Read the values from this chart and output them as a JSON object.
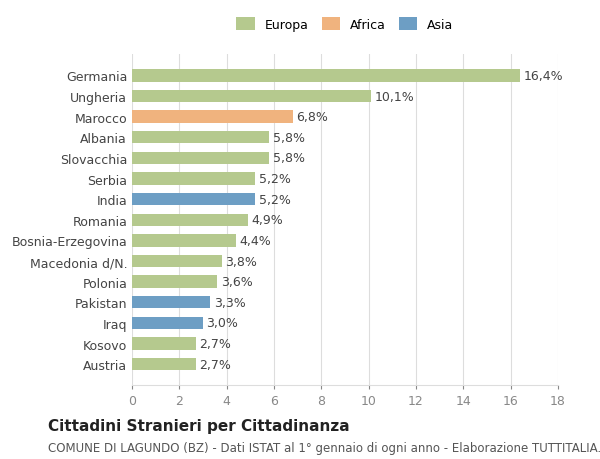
{
  "countries": [
    "Austria",
    "Kosovo",
    "Iraq",
    "Pakistan",
    "Polonia",
    "Macedonia d/N.",
    "Bosnia-Erzegovina",
    "Romania",
    "India",
    "Serbia",
    "Slovacchia",
    "Albania",
    "Marocco",
    "Ungheria",
    "Germania"
  ],
  "values": [
    2.7,
    2.7,
    3.0,
    3.3,
    3.6,
    3.8,
    4.4,
    4.9,
    5.2,
    5.2,
    5.8,
    5.8,
    6.8,
    10.1,
    16.4
  ],
  "labels": [
    "2,7%",
    "2,7%",
    "3,0%",
    "3,3%",
    "3,6%",
    "3,8%",
    "4,4%",
    "4,9%",
    "5,2%",
    "5,2%",
    "5,8%",
    "5,8%",
    "6,8%",
    "10,1%",
    "16,4%"
  ],
  "continents": [
    "Europa",
    "Europa",
    "Asia",
    "Asia",
    "Europa",
    "Europa",
    "Europa",
    "Europa",
    "Asia",
    "Europa",
    "Europa",
    "Europa",
    "Africa",
    "Europa",
    "Europa"
  ],
  "colors": {
    "Europa": "#b5c98e",
    "Africa": "#f0b37e",
    "Asia": "#6d9ec4"
  },
  "bar_height": 0.6,
  "xlim": [
    0,
    18
  ],
  "xticks": [
    0,
    2,
    4,
    6,
    8,
    10,
    12,
    14,
    16,
    18
  ],
  "title": "Cittadini Stranieri per Cittadinanza",
  "subtitle": "COMUNE DI LAGUNDO (BZ) - Dati ISTAT al 1° gennaio di ogni anno - Elaborazione TUTTITALIA.IT",
  "legend_labels": [
    "Europa",
    "Africa",
    "Asia"
  ],
  "legend_colors": [
    "#b5c98e",
    "#f0b37e",
    "#6d9ec4"
  ],
  "background_color": "#ffffff",
  "grid_color": "#dddddd",
  "label_fontsize": 9,
  "tick_fontsize": 9,
  "title_fontsize": 11,
  "subtitle_fontsize": 8.5
}
